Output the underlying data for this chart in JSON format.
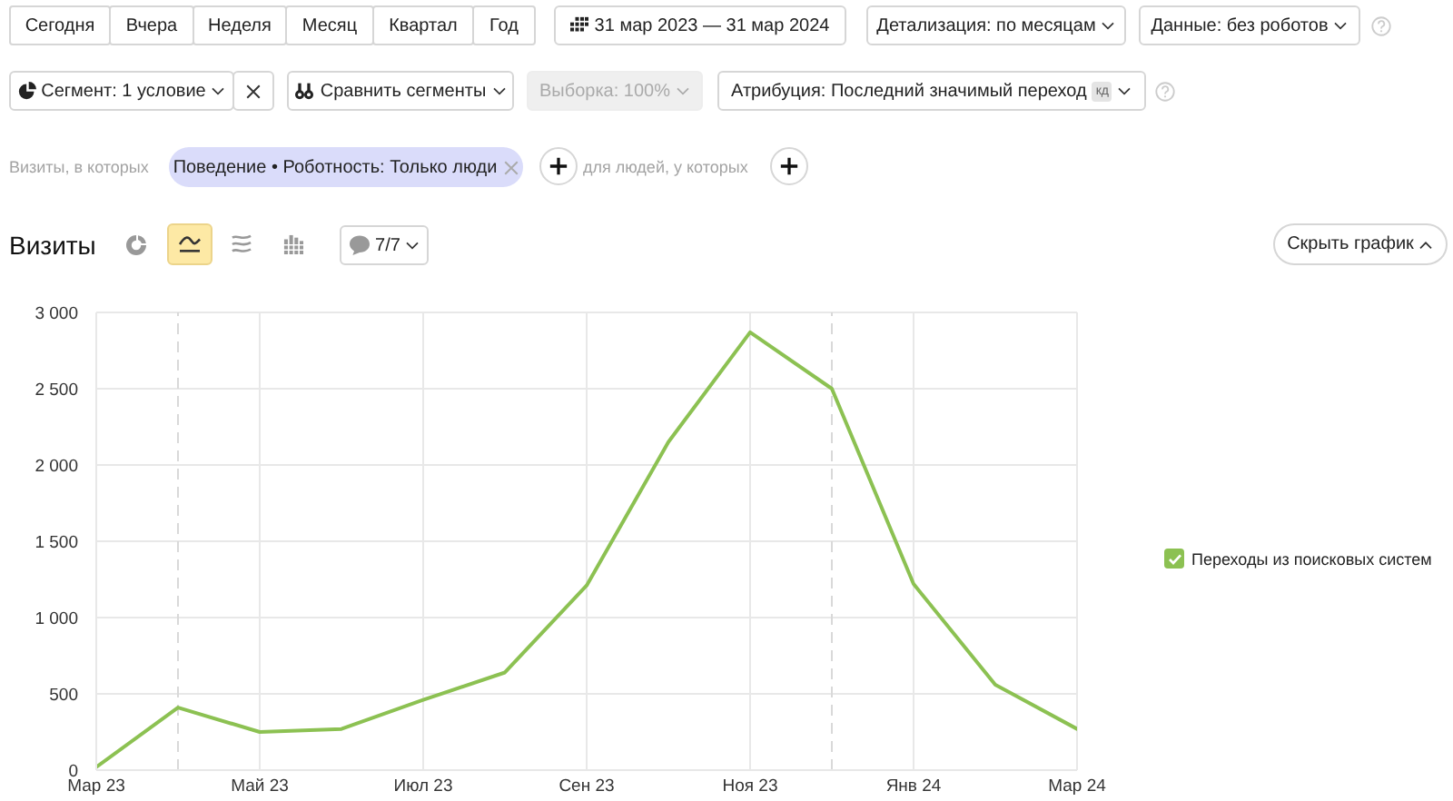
{
  "chart_data": {
    "type": "line",
    "title": "Визиты",
    "x": [
      "2023-03",
      "2023-04",
      "2023-05",
      "2023-06",
      "2023-07",
      "2023-08",
      "2023-09",
      "2023-10",
      "2023-11",
      "2023-12",
      "2024-01",
      "2024-02",
      "2024-03"
    ],
    "series": [
      {
        "name": "Переходы из поисковых систем",
        "color": "#8cc152",
        "values": [
          20,
          410,
          250,
          270,
          460,
          640,
          1210,
          2150,
          2870,
          2500,
          1220,
          560,
          270
        ]
      }
    ],
    "xlim": [
      "2023-03",
      "2024-03"
    ],
    "xticks": [
      {
        "value": "2023-03",
        "label": "Мар 23"
      },
      {
        "value": "2023-05",
        "label": "Май 23"
      },
      {
        "value": "2023-07",
        "label": "Июл 23"
      },
      {
        "value": "2023-09",
        "label": "Сен 23"
      },
      {
        "value": "2023-11",
        "label": "Ноя 23"
      },
      {
        "value": "2024-01",
        "label": "Янв 24"
      },
      {
        "value": "2024-03",
        "label": "Мар 24"
      }
    ],
    "ylim": [
      0,
      3000
    ],
    "yticks": [
      0,
      500,
      {
        "value": 1000,
        "label": "1 000"
      },
      {
        "value": 1500,
        "label": "1 500"
      },
      {
        "value": 2000,
        "label": "2 000"
      },
      {
        "value": 2500,
        "label": "2 500"
      },
      {
        "value": 3000,
        "label": "3 000"
      }
    ],
    "grid": true,
    "legend": "right",
    "marker": "none",
    "line_style": "solid",
    "ref_lines": [
      {
        "axis": "x",
        "value": "2023-04",
        "color": "#d9d9d9",
        "line_style": "dashed"
      },
      {
        "axis": "x",
        "value": "2023-12",
        "color": "#d9d9d9",
        "line_style": "dashed"
      }
    ],
    "annotations": [
      "Сегодня",
      "Вчера",
      "Неделя",
      "Месяц",
      "Квартал",
      "Год",
      "31 мар 2023 — 31 мар 2024",
      "Детализация: по месяцам",
      "Данные: без роботов",
      "Сегмент: 1 условие",
      "Сравнить сегменты",
      "Выборка: 100%",
      "Атрибуция: Последний значимый переход",
      "кд",
      "Визиты, в которых",
      "Поведение • Роботность: Только люди",
      "для людей, у которых",
      "7/7",
      "Скрыть график"
    ]
  }
}
